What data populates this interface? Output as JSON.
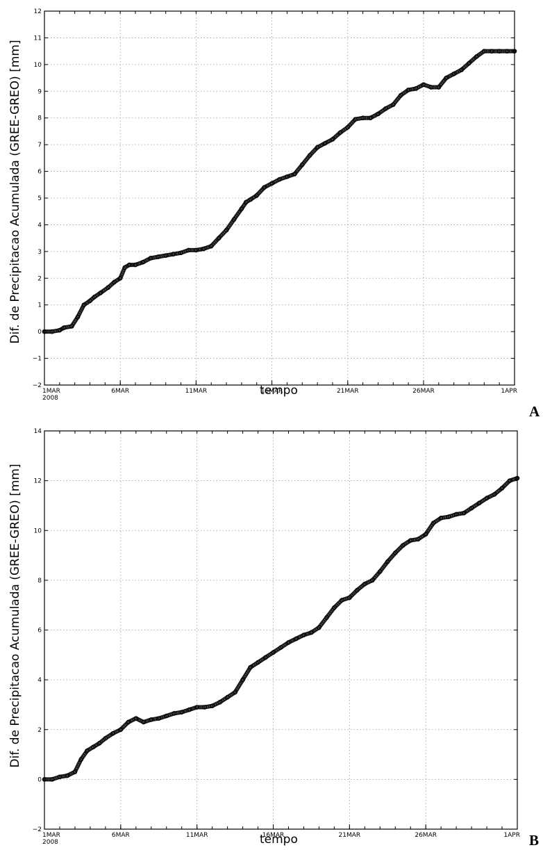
{
  "chart_data": [
    {
      "type": "line",
      "panel_letter": "A",
      "xlabel": "tempo",
      "ylabel": "Dif. de Precipitacao Acumulada  (GREE-GREO) [mm]",
      "ylim": [
        -2,
        12
      ],
      "yticks": [
        -2,
        -1,
        0,
        1,
        2,
        3,
        4,
        5,
        6,
        7,
        8,
        9,
        10,
        11,
        12
      ],
      "xlim": [
        0,
        31
      ],
      "xticks": [
        {
          "pos": 0,
          "label": "1MAR",
          "sublabel": "2008"
        },
        {
          "pos": 5,
          "label": "6MAR"
        },
        {
          "pos": 10,
          "label": "11MAR"
        },
        {
          "pos": 15,
          "label": "16MAR"
        },
        {
          "pos": 20,
          "label": "21MAR"
        },
        {
          "pos": 25,
          "label": "26MAR"
        },
        {
          "pos": 31,
          "label": "1APR"
        }
      ],
      "grid": true,
      "series": [
        {
          "x": [
            0,
            0.5,
            1,
            1.3,
            1.8,
            2.2,
            2.6,
            3.0,
            3.3,
            3.7,
            4.2,
            4.6,
            5.0,
            5.3,
            5.6,
            6.0,
            6.5,
            7.0,
            7.5,
            8.0,
            8.5,
            9.0,
            9.5,
            10.0,
            10.5,
            11.0,
            11.5,
            12.0,
            12.5,
            13.0,
            13.3,
            13.6,
            14.0,
            14.5,
            15.0,
            15.5,
            16.0,
            16.5,
            17.0,
            17.5,
            18.0,
            18.5,
            19.0,
            19.5,
            20.0,
            20.5,
            21.0,
            21.5,
            22.0,
            22.5,
            23.0,
            23.5,
            24.0,
            24.5,
            25.0,
            25.5,
            26.0,
            26.5,
            27.0,
            27.5,
            28.0,
            28.5,
            29.0,
            29.5,
            30.0,
            30.5,
            31.0
          ],
          "y": [
            0.0,
            0.0,
            0.05,
            0.15,
            0.2,
            0.55,
            1.0,
            1.15,
            1.3,
            1.45,
            1.65,
            1.85,
            2.0,
            2.4,
            2.5,
            2.5,
            2.6,
            2.75,
            2.8,
            2.85,
            2.9,
            2.95,
            3.05,
            3.05,
            3.1,
            3.2,
            3.5,
            3.8,
            4.2,
            4.6,
            4.85,
            4.95,
            5.1,
            5.4,
            5.55,
            5.7,
            5.8,
            5.9,
            6.25,
            6.6,
            6.9,
            7.05,
            7.2,
            7.45,
            7.65,
            7.95,
            8.0,
            8.0,
            8.15,
            8.35,
            8.5,
            8.85,
            9.05,
            9.1,
            9.25,
            9.15,
            9.15,
            9.5,
            9.65,
            9.8,
            10.05,
            10.3,
            10.5,
            10.5,
            10.5,
            10.5,
            10.5
          ]
        }
      ]
    },
    {
      "type": "line",
      "panel_letter": "B",
      "xlabel": "tempo",
      "ylabel": "Dif. de Precipitacao Acumulada  (GREE-GREO) [mm]",
      "ylim": [
        -2,
        14
      ],
      "yticks": [
        -2,
        0,
        2,
        4,
        6,
        8,
        10,
        12,
        14
      ],
      "xlim": [
        0,
        31
      ],
      "xticks": [
        {
          "pos": 0,
          "label": "1MAR",
          "sublabel": "2008"
        },
        {
          "pos": 5,
          "label": "6MAR"
        },
        {
          "pos": 10,
          "label": "11MAR"
        },
        {
          "pos": 15,
          "label": "16MAR"
        },
        {
          "pos": 20,
          "label": "21MAR"
        },
        {
          "pos": 25,
          "label": "26MAR"
        },
        {
          "pos": 31,
          "label": "1APR"
        }
      ],
      "grid": true,
      "series": [
        {
          "x": [
            0,
            0.5,
            1.0,
            1.5,
            2.0,
            2.4,
            2.8,
            3.2,
            3.6,
            4.0,
            4.5,
            5.0,
            5.5,
            6.0,
            6.5,
            7.0,
            7.5,
            8.0,
            8.5,
            9.0,
            9.5,
            10.0,
            10.5,
            11.0,
            11.5,
            12.0,
            12.5,
            13.0,
            13.5,
            14.0,
            14.5,
            15.0,
            15.5,
            16.0,
            16.5,
            17.0,
            17.5,
            18.0,
            18.5,
            19.0,
            19.5,
            20.0,
            20.5,
            21.0,
            21.5,
            22.0,
            22.5,
            23.0,
            23.5,
            24.0,
            24.5,
            25.0,
            25.5,
            26.0,
            26.5,
            27.0,
            27.5,
            28.0,
            28.5,
            29.0,
            29.5,
            30.0,
            30.5,
            31.0
          ],
          "y": [
            0.0,
            0.0,
            0.1,
            0.15,
            0.3,
            0.8,
            1.15,
            1.3,
            1.45,
            1.65,
            1.85,
            2.0,
            2.3,
            2.45,
            2.3,
            2.4,
            2.45,
            2.55,
            2.65,
            2.7,
            2.8,
            2.9,
            2.9,
            2.95,
            3.1,
            3.3,
            3.5,
            4.0,
            4.5,
            4.7,
            4.9,
            5.1,
            5.3,
            5.5,
            5.65,
            5.8,
            5.9,
            6.1,
            6.5,
            6.9,
            7.2,
            7.3,
            7.6,
            7.85,
            8.0,
            8.35,
            8.75,
            9.1,
            9.4,
            9.6,
            9.65,
            9.85,
            10.3,
            10.5,
            10.55,
            10.65,
            10.7,
            10.9,
            11.1,
            11.3,
            11.45,
            11.7,
            12.0,
            12.1
          ]
        }
      ]
    }
  ]
}
